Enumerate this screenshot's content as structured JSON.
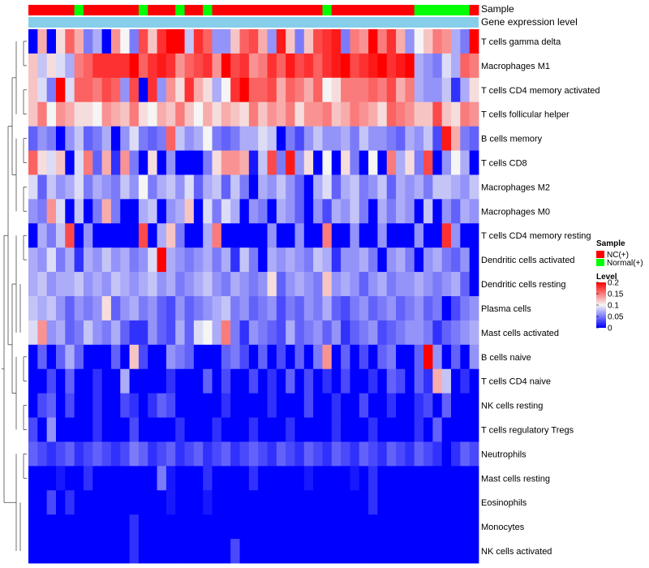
{
  "chart_data": {
    "type": "heatmap",
    "title": "",
    "rows": [
      "T cells gamma delta",
      "Macrophages M1",
      "T cells CD4 memory activated",
      "T cells follicular helper",
      "B cells memory",
      "T cells CD8",
      "Macrophages M2",
      "Macrophages M0",
      "T cells CD4 memory resting",
      "Dendritic cells activated",
      "Dendritic cells resting",
      "Plasma cells",
      "Mast cells activated",
      "B cells naive",
      "T cells CD4 naive",
      "NK cells resting",
      "T cells regulatory  Tregs",
      "Neutrophils",
      "Mast cells resting",
      "Eosinophils",
      "Monocytes",
      "NK cells activated"
    ],
    "annotation_labels": [
      "Sample",
      "Gene expression level"
    ],
    "sample_groups": [
      "NC",
      "NC",
      "NC",
      "NC",
      "NC",
      "Normal",
      "NC",
      "NC",
      "NC",
      "NC",
      "NC",
      "NC",
      "Normal",
      "NC",
      "NC",
      "NC",
      "Normal",
      "NC",
      "NC",
      "Normal",
      "NC",
      "NC",
      "NC",
      "NC",
      "NC",
      "NC",
      "NC",
      "NC",
      "NC",
      "NC",
      "NC",
      "NC",
      "Normal",
      "NC",
      "NC",
      "NC",
      "NC",
      "NC",
      "NC",
      "NC",
      "NC",
      "NC",
      "Normal",
      "Normal",
      "Normal",
      "Normal",
      "Normal",
      "Normal",
      "NC"
    ],
    "colorscale": {
      "low": 0,
      "mid": 0.1,
      "high": 0.2,
      "low_color": "#0000ff",
      "mid_color": "#f5f5f5",
      "high_color": "#ff0000"
    },
    "values": [
      [
        0.0,
        0.13,
        0.0,
        0.11,
        0.16,
        0.13,
        0.05,
        0.07,
        0.0,
        0.14,
        0.1,
        0.05,
        0.17,
        0.12,
        0.18,
        0.2,
        0.2,
        0.08,
        0.18,
        0.16,
        0.06,
        0.06,
        0.12,
        0.16,
        0.17,
        0.13,
        0.06,
        0.19,
        0.12,
        0.05,
        0.12,
        0.17,
        0.18,
        0.19,
        0.05,
        0.15,
        0.14,
        0.2,
        0.15,
        0.18,
        0.13,
        0.06,
        0.1,
        0.12,
        0.15,
        0.14,
        0.07,
        0.05,
        0.2
      ],
      [
        0.12,
        0.08,
        0.11,
        0.09,
        0.07,
        0.15,
        0.16,
        0.18,
        0.18,
        0.18,
        0.18,
        0.2,
        0.16,
        0.18,
        0.19,
        0.18,
        0.14,
        0.16,
        0.17,
        0.18,
        0.14,
        0.2,
        0.17,
        0.18,
        0.14,
        0.15,
        0.18,
        0.16,
        0.19,
        0.17,
        0.18,
        0.16,
        0.18,
        0.19,
        0.2,
        0.17,
        0.18,
        0.19,
        0.2,
        0.18,
        0.19,
        0.2,
        0.07,
        0.06,
        0.05,
        0.09,
        0.07,
        0.16,
        0.15
      ],
      [
        0.12,
        0.09,
        0.05,
        0.2,
        0.09,
        0.16,
        0.16,
        0.15,
        0.17,
        0.16,
        0.06,
        0.17,
        0.0,
        0.18,
        0.06,
        0.14,
        0.11,
        0.18,
        0.13,
        0.11,
        0.07,
        0.1,
        0.18,
        0.2,
        0.16,
        0.16,
        0.17,
        0.13,
        0.16,
        0.15,
        0.13,
        0.16,
        0.1,
        0.11,
        0.15,
        0.15,
        0.15,
        0.16,
        0.15,
        0.17,
        0.13,
        0.15,
        0.07,
        0.06,
        0.06,
        0.08,
        0.02,
        0.07,
        0.11
      ],
      [
        0.12,
        0.15,
        0.1,
        0.14,
        0.13,
        0.11,
        0.11,
        0.1,
        0.14,
        0.13,
        0.12,
        0.15,
        0.11,
        0.1,
        0.13,
        0.12,
        0.15,
        0.12,
        0.1,
        0.13,
        0.11,
        0.13,
        0.12,
        0.11,
        0.15,
        0.12,
        0.14,
        0.13,
        0.15,
        0.11,
        0.14,
        0.14,
        0.15,
        0.12,
        0.13,
        0.15,
        0.14,
        0.13,
        0.11,
        0.16,
        0.15,
        0.14,
        0.12,
        0.12,
        0.17,
        0.12,
        0.11,
        0.15,
        0.14
      ],
      [
        0.04,
        0.06,
        0.05,
        0.0,
        0.06,
        0.08,
        0.04,
        0.05,
        0.07,
        0.0,
        0.06,
        0.09,
        0.05,
        0.04,
        0.05,
        0.16,
        0.08,
        0.06,
        0.07,
        0.1,
        0.05,
        0.04,
        0.05,
        0.07,
        0.07,
        0.09,
        0.08,
        0.0,
        0.05,
        0.03,
        0.06,
        0.08,
        0.06,
        0.06,
        0.07,
        0.05,
        0.08,
        0.06,
        0.06,
        0.05,
        0.04,
        0.07,
        0.06,
        0.08,
        0.03,
        0.19,
        0.13,
        0.05,
        0.04
      ],
      [
        0.16,
        0.11,
        0.09,
        0.12,
        0.0,
        0.09,
        0.15,
        0.04,
        0.13,
        0.02,
        0.14,
        0.05,
        0.0,
        0.11,
        0.0,
        0.06,
        0.0,
        0.0,
        0.0,
        0.05,
        0.11,
        0.14,
        0.14,
        0.13,
        0.01,
        0.08,
        0.17,
        0.05,
        0.19,
        0.06,
        0.11,
        0.0,
        0.1,
        0.0,
        0.11,
        0.05,
        0.0,
        0.1,
        0.0,
        0.15,
        0.07,
        0.11,
        0.05,
        0.17,
        0.0,
        0.06,
        0.1,
        0.07,
        0.0
      ],
      [
        0.09,
        0.04,
        0.08,
        0.06,
        0.07,
        0.09,
        0.05,
        0.07,
        0.06,
        0.05,
        0.08,
        0.06,
        0.1,
        0.05,
        0.07,
        0.08,
        0.06,
        0.09,
        0.04,
        0.07,
        0.08,
        0.04,
        0.08,
        0.05,
        0.0,
        0.07,
        0.06,
        0.08,
        0.06,
        0.04,
        0.0,
        0.07,
        0.09,
        0.04,
        0.07,
        0.08,
        0.05,
        0.06,
        0.08,
        0.04,
        0.07,
        0.06,
        0.07,
        0.05,
        0.08,
        0.08,
        0.07,
        0.06,
        0.08
      ],
      [
        0.06,
        0.05,
        0.14,
        0.09,
        0.0,
        0.08,
        0.0,
        0.05,
        0.13,
        0.05,
        0.0,
        0.0,
        0.07,
        0.08,
        0.0,
        0.06,
        0.07,
        0.12,
        0.0,
        0.09,
        0.05,
        0.09,
        0.07,
        0.0,
        0.06,
        0.05,
        0.0,
        0.07,
        0.06,
        0.04,
        0.0,
        0.06,
        0.03,
        0.07,
        0.06,
        0.08,
        0.05,
        0.0,
        0.07,
        0.05,
        0.07,
        0.06,
        0.0,
        0.08,
        0.0,
        0.06,
        0.04,
        0.07,
        0.06
      ],
      [
        0.0,
        0.07,
        0.05,
        0.08,
        0.17,
        0.0,
        0.06,
        0.0,
        0.0,
        0.0,
        0.0,
        0.0,
        0.17,
        0.0,
        0.07,
        0.12,
        0.05,
        0.0,
        0.0,
        0.07,
        0.15,
        0.0,
        0.0,
        0.0,
        0.0,
        0.0,
        0.06,
        0.0,
        0.0,
        0.06,
        0.0,
        0.0,
        0.15,
        0.0,
        0.0,
        0.06,
        0.0,
        0.0,
        0.06,
        0.0,
        0.0,
        0.0,
        0.06,
        0.0,
        0.0,
        0.18,
        0.06,
        0.0,
        0.0
      ],
      [
        0.07,
        0.06,
        0.09,
        0.05,
        0.07,
        0.02,
        0.07,
        0.06,
        0.08,
        0.06,
        0.07,
        0.05,
        0.06,
        0.09,
        0.2,
        0.07,
        0.06,
        0.05,
        0.06,
        0.07,
        0.05,
        0.07,
        0.02,
        0.08,
        0.05,
        0.0,
        0.07,
        0.06,
        0.07,
        0.06,
        0.05,
        0.08,
        0.07,
        0.02,
        0.06,
        0.06,
        0.07,
        0.05,
        0.0,
        0.06,
        0.07,
        0.05,
        0.0,
        0.06,
        0.07,
        0.05,
        0.04,
        0.06,
        0.0
      ],
      [
        0.07,
        0.08,
        0.06,
        0.07,
        0.07,
        0.08,
        0.06,
        0.07,
        0.06,
        0.08,
        0.07,
        0.06,
        0.07,
        0.08,
        0.06,
        0.07,
        0.05,
        0.06,
        0.07,
        0.08,
        0.06,
        0.05,
        0.07,
        0.06,
        0.05,
        0.06,
        0.11,
        0.04,
        0.06,
        0.07,
        0.06,
        0.05,
        0.12,
        0.06,
        0.07,
        0.06,
        0.04,
        0.06,
        0.07,
        0.05,
        0.06,
        0.06,
        0.07,
        0.06,
        0.05,
        0.06,
        0.07,
        0.04,
        0.0
      ],
      [
        0.08,
        0.07,
        0.08,
        0.06,
        0.04,
        0.06,
        0.05,
        0.06,
        0.11,
        0.04,
        0.06,
        0.07,
        0.05,
        0.06,
        0.04,
        0.03,
        0.06,
        0.04,
        0.05,
        0.06,
        0.07,
        0.08,
        0.05,
        0.06,
        0.04,
        0.05,
        0.06,
        0.03,
        0.05,
        0.04,
        0.06,
        0.05,
        0.07,
        0.04,
        0.03,
        0.05,
        0.06,
        0.04,
        0.05,
        0.06,
        0.04,
        0.05,
        0.06,
        0.04,
        0.05,
        0.0,
        0.03,
        0.05,
        0.06
      ],
      [
        0.09,
        0.14,
        0.06,
        0.07,
        0.04,
        0.05,
        0.08,
        0.06,
        0.05,
        0.07,
        0.04,
        0.02,
        0.02,
        0.06,
        0.04,
        0.03,
        0.07,
        0.04,
        0.09,
        0.1,
        0.07,
        0.15,
        0.05,
        0.02,
        0.06,
        0.05,
        0.04,
        0.03,
        0.07,
        0.04,
        0.05,
        0.06,
        0.04,
        0.06,
        0.02,
        0.04,
        0.05,
        0.06,
        0.03,
        0.04,
        0.05,
        0.06,
        0.06,
        0.05,
        0.02,
        0.04,
        0.05,
        0.06,
        0.07
      ],
      [
        0.0,
        0.04,
        0.0,
        0.04,
        0.07,
        0.04,
        0.0,
        0.0,
        0.0,
        0.04,
        0.0,
        0.12,
        0.03,
        0.0,
        0.0,
        0.06,
        0.05,
        0.04,
        0.0,
        0.0,
        0.0,
        0.04,
        0.05,
        0.03,
        0.0,
        0.04,
        0.0,
        0.03,
        0.0,
        0.04,
        0.0,
        0.05,
        0.14,
        0.0,
        0.04,
        0.0,
        0.03,
        0.0,
        0.04,
        0.05,
        0.0,
        0.0,
        0.04,
        0.2,
        0.06,
        0.0,
        0.04,
        0.0,
        0.06
      ],
      [
        0.0,
        0.0,
        0.03,
        0.0,
        0.04,
        0.0,
        0.0,
        0.02,
        0.0,
        0.0,
        0.07,
        0.0,
        0.0,
        0.0,
        0.0,
        0.02,
        0.0,
        0.0,
        0.0,
        0.04,
        0.0,
        0.03,
        0.0,
        0.0,
        0.03,
        0.0,
        0.02,
        0.0,
        0.04,
        0.0,
        0.03,
        0.0,
        0.02,
        0.0,
        0.03,
        0.0,
        0.0,
        0.02,
        0.0,
        0.04,
        0.03,
        0.0,
        0.04,
        0.02,
        0.13,
        0.08,
        0.0,
        0.02,
        0.0
      ],
      [
        0.0,
        0.03,
        0.04,
        0.0,
        0.03,
        0.0,
        0.0,
        0.02,
        0.0,
        0.0,
        0.03,
        0.02,
        0.0,
        0.02,
        0.04,
        0.03,
        0.0,
        0.0,
        0.0,
        0.0,
        0.0,
        0.02,
        0.0,
        0.0,
        0.0,
        0.0,
        0.02,
        0.0,
        0.0,
        0.0,
        0.03,
        0.0,
        0.0,
        0.02,
        0.0,
        0.0,
        0.03,
        0.0,
        0.0,
        0.02,
        0.0,
        0.0,
        0.02,
        0.03,
        0.0,
        0.04,
        0.0,
        0.0,
        0.0
      ],
      [
        0.03,
        0.0,
        0.06,
        0.0,
        0.0,
        0.0,
        0.0,
        0.02,
        0.0,
        0.0,
        0.0,
        0.03,
        0.0,
        0.0,
        0.0,
        0.0,
        0.02,
        0.0,
        0.0,
        0.0,
        0.02,
        0.0,
        0.0,
        0.0,
        0.02,
        0.0,
        0.0,
        0.0,
        0.02,
        0.0,
        0.0,
        0.0,
        0.0,
        0.02,
        0.0,
        0.0,
        0.0,
        0.02,
        0.0,
        0.0,
        0.0,
        0.0,
        0.02,
        0.0,
        0.04,
        0.0,
        0.0,
        0.0,
        0.0
      ],
      [
        0.04,
        0.03,
        0.02,
        0.03,
        0.04,
        0.02,
        0.03,
        0.04,
        0.03,
        0.02,
        0.03,
        0.05,
        0.04,
        0.02,
        0.03,
        0.04,
        0.02,
        0.03,
        0.04,
        0.02,
        0.03,
        0.04,
        0.02,
        0.03,
        0.04,
        0.03,
        0.02,
        0.04,
        0.03,
        0.02,
        0.04,
        0.03,
        0.02,
        0.04,
        0.03,
        0.02,
        0.04,
        0.03,
        0.02,
        0.04,
        0.03,
        0.02,
        0.04,
        0.03,
        0.02,
        0.0,
        0.02,
        0.04,
        0.03
      ],
      [
        0.0,
        0.0,
        0.0,
        0.01,
        0.0,
        0.0,
        0.02,
        0.0,
        0.0,
        0.0,
        0.0,
        0.0,
        0.0,
        0.0,
        0.05,
        0.01,
        0.0,
        0.0,
        0.0,
        0.02,
        0.0,
        0.0,
        0.0,
        0.0,
        0.02,
        0.0,
        0.0,
        0.0,
        0.0,
        0.0,
        0.01,
        0.0,
        0.0,
        0.0,
        0.0,
        0.01,
        0.0,
        0.02,
        0.0,
        0.0,
        0.0,
        0.0,
        0.0,
        0.0,
        0.0,
        0.0,
        0.0,
        0.0,
        0.0
      ],
      [
        0.0,
        0.0,
        0.03,
        0.0,
        0.02,
        0.0,
        0.0,
        0.0,
        0.0,
        0.0,
        0.0,
        0.0,
        0.0,
        0.0,
        0.0,
        0.01,
        0.0,
        0.0,
        0.0,
        0.01,
        0.0,
        0.0,
        0.0,
        0.0,
        0.0,
        0.0,
        0.0,
        0.0,
        0.0,
        0.0,
        0.0,
        0.0,
        0.0,
        0.0,
        0.0,
        0.0,
        0.0,
        0.02,
        0.0,
        0.0,
        0.0,
        0.0,
        0.0,
        0.0,
        0.0,
        0.0,
        0.0,
        0.0,
        0.0
      ],
      [
        0.0,
        0.0,
        0.0,
        0.0,
        0.0,
        0.0,
        0.0,
        0.0,
        0.0,
        0.0,
        0.0,
        0.02,
        0.0,
        0.0,
        0.0,
        0.0,
        0.0,
        0.0,
        0.0,
        0.0,
        0.0,
        0.0,
        0.0,
        0.0,
        0.0,
        0.0,
        0.0,
        0.0,
        0.0,
        0.0,
        0.0,
        0.0,
        0.0,
        0.0,
        0.0,
        0.0,
        0.0,
        0.0,
        0.0,
        0.0,
        0.0,
        0.0,
        0.0,
        0.0,
        0.0,
        0.0,
        0.0,
        0.0,
        0.0
      ],
      [
        0.0,
        0.0,
        0.0,
        0.0,
        0.0,
        0.0,
        0.0,
        0.0,
        0.0,
        0.0,
        0.0,
        0.02,
        0.0,
        0.0,
        0.0,
        0.0,
        0.0,
        0.0,
        0.0,
        0.0,
        0.0,
        0.0,
        0.03,
        0.0,
        0.0,
        0.0,
        0.0,
        0.0,
        0.0,
        0.0,
        0.0,
        0.0,
        0.0,
        0.0,
        0.0,
        0.0,
        0.0,
        0.0,
        0.0,
        0.0,
        0.0,
        0.0,
        0.0,
        0.0,
        0.0,
        0.0,
        0.0,
        0.0,
        0.0
      ]
    ]
  },
  "legend": {
    "sample": {
      "title": "Sample",
      "items": [
        {
          "label": "NC(+)",
          "color": "#ff0000"
        },
        {
          "label": "Normal(+)",
          "color": "#00ff00"
        }
      ]
    },
    "level": {
      "title": "Level",
      "ticks": [
        "0.2",
        "0.15",
        "0.1",
        "0.05",
        "0"
      ],
      "tick_values": [
        0.2,
        0.15,
        0.1,
        0.05,
        0
      ]
    }
  },
  "annotation_colors": {
    "NC": "#ff0000",
    "Normal": "#00ff00",
    "gene_expression": "#87ceeb"
  }
}
